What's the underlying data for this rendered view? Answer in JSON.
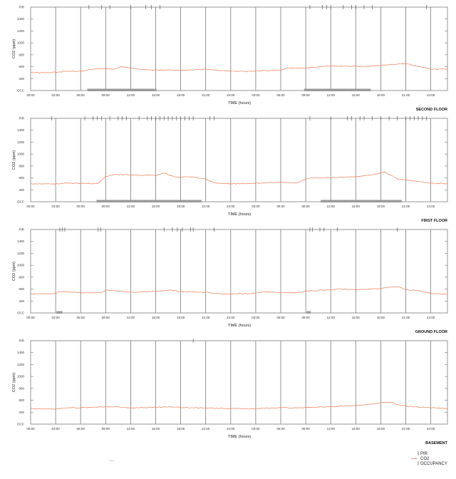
{
  "chart_data": [
    {
      "type": "line",
      "title": "SECOND FLOOR",
      "xlabel": "TIME (hours)",
      "ylabel": "CO2 (ppm)",
      "ylim": [
        200,
        1600
      ],
      "y_ticks": [
        "OCC",
        "400",
        "600",
        "800",
        "1000",
        "1200",
        "1400",
        "PIR"
      ],
      "x_ticks": [
        "00:00",
        "03:00",
        "06:00",
        "09:00",
        "12:00",
        "15:00",
        "18:00",
        "21:00",
        "24:00",
        "03:00",
        "06:00",
        "09:00",
        "12:00",
        "15:00",
        "18:00",
        "21:00",
        "24:00"
      ],
      "series": [
        {
          "name": "CO2",
          "x_hours": [
            0,
            2,
            4,
            6,
            8,
            10,
            11,
            13,
            15,
            18,
            21,
            24,
            26,
            28,
            30,
            31,
            33,
            36,
            39,
            40,
            42,
            45,
            48,
            50
          ],
          "values": [
            505,
            500,
            520,
            525,
            570,
            560,
            600,
            555,
            545,
            540,
            560,
            525,
            520,
            535,
            540,
            580,
            575,
            615,
            605,
            600,
            625,
            650,
            560,
            555
          ]
        },
        {
          "name": "PIR",
          "x_hours": [
            7,
            8.5,
            9.5,
            12,
            13.8,
            14.5,
            15.5,
            33.5,
            35,
            35.5,
            36,
            37.5,
            38.5,
            39,
            40,
            41,
            47.5
          ]
        },
        {
          "name": "OCCUPANCY",
          "intervals": [
            [
              6.8,
              14.8
            ],
            [
              14.8,
              15.1
            ],
            [
              32.8,
              39.8
            ],
            [
              39.8,
              40.8
            ]
          ]
        }
      ],
      "grid": true,
      "legend_position": "bottom-right"
    },
    {
      "type": "line",
      "title": "FIRST FLOOR",
      "xlabel": "TIME (hours)",
      "ylabel": "CO2 (ppm)",
      "ylim": [
        200,
        1600
      ],
      "y_ticks": [
        "OCC",
        "400",
        "600",
        "800",
        "1000",
        "1200",
        "1400",
        "PIR"
      ],
      "x_ticks": [
        "00:00",
        "03:00",
        "06:00",
        "09:00",
        "12:00",
        "15:00",
        "18:00",
        "21:00",
        "24:00",
        "03:00",
        "06:00",
        "09:00",
        "12:00",
        "15:00",
        "18:00",
        "21:00",
        "24:00"
      ],
      "series": [
        {
          "name": "CO2",
          "x_hours": [
            0,
            3,
            4,
            6,
            8,
            8.5,
            9,
            10,
            12,
            15,
            16,
            16.5,
            17.5,
            19,
            21,
            22,
            24,
            27,
            30,
            32,
            33.5,
            35,
            39,
            41,
            42.5,
            44,
            46,
            48,
            50
          ],
          "values": [
            500,
            500,
            510,
            510,
            505,
            560,
            620,
            660,
            650,
            640,
            690,
            650,
            610,
            620,
            580,
            515,
            500,
            510,
            525,
            520,
            600,
            600,
            620,
            650,
            700,
            580,
            550,
            510,
            505
          ]
        },
        {
          "name": "PIR",
          "x_hours": [
            2.5,
            6.5,
            7.5,
            8,
            8.5,
            9.5,
            10.5,
            11,
            11.5,
            13,
            14,
            14.5,
            15,
            15.5,
            16,
            16.5,
            17,
            17.5,
            18,
            18.5,
            19,
            19.5,
            21.5,
            22,
            33.5,
            36,
            38,
            38.5,
            39.5,
            40,
            41,
            42,
            43,
            44,
            45,
            45.5,
            46,
            46.5,
            47,
            47.5
          ]
        },
        {
          "name": "OCCUPANCY",
          "intervals": [
            [
              7.9,
              16.2
            ],
            [
              16.2,
              20.5
            ],
            [
              34.8,
              44.5
            ]
          ]
        }
      ],
      "grid": true
    },
    {
      "type": "line",
      "title": "GROUND FLOOR",
      "xlabel": "TIME (hours)",
      "ylabel": "CO2 (ppm)",
      "ylim": [
        200,
        1600
      ],
      "y_ticks": [
        "OCC",
        "400",
        "600",
        "800",
        "1000",
        "1200",
        "1400",
        "PIR"
      ],
      "x_ticks": [
        "00:00",
        "03:00",
        "06:00",
        "09:00",
        "12:00",
        "15:00",
        "18:00",
        "21:00",
        "24:00",
        "03:00",
        "06:00",
        "09:00",
        "12:00",
        "15:00",
        "18:00",
        "21:00",
        "24:00"
      ],
      "series": [
        {
          "name": "CO2",
          "x_hours": [
            0,
            3,
            3.5,
            6,
            8.5,
            9,
            11,
            12,
            15,
            17,
            18,
            21,
            23,
            24,
            27,
            28,
            30,
            32,
            33,
            36,
            37,
            39,
            42,
            43,
            44,
            45,
            46.5,
            48,
            50
          ],
          "values": [
            520,
            525,
            560,
            540,
            540,
            580,
            565,
            545,
            565,
            580,
            560,
            545,
            520,
            520,
            525,
            560,
            540,
            540,
            565,
            590,
            600,
            590,
            610,
            635,
            640,
            590,
            575,
            530,
            520
          ]
        },
        {
          "name": "PIR",
          "x_hours": [
            3.5,
            3.8,
            4.1,
            8.1,
            8.4,
            16,
            17,
            17.6,
            18.2,
            19.2,
            19.5,
            22,
            33.5,
            33.8,
            34.7,
            35.2,
            36.8,
            44
          ]
        },
        {
          "name": "OCCUPANCY",
          "intervals": [
            [
              3.1,
              3.8
            ],
            [
              33.1,
              33.6
            ]
          ]
        }
      ],
      "grid": true
    },
    {
      "type": "line",
      "title": "BASEMENT",
      "xlabel": "TIME (hours)",
      "ylabel": "CO2 (ppm)",
      "ylim": [
        200,
        1600
      ],
      "y_ticks": [
        "OCC",
        "400",
        "600",
        "800",
        "1000",
        "1200",
        "1400",
        "PIR"
      ],
      "x_ticks": [
        "00:00",
        "03:00",
        "06:00",
        "09:00",
        "12:00",
        "15:00",
        "18:00",
        "21:00",
        "24:00",
        "03:00",
        "06:00",
        "09:00",
        "12:00",
        "15:00",
        "18:00",
        "21:00",
        "24:00"
      ],
      "series": [
        {
          "name": "CO2",
          "x_hours": [
            0,
            3,
            4,
            6,
            9,
            10,
            12,
            15,
            17,
            18,
            21,
            24,
            27,
            29,
            30,
            32,
            35,
            36,
            40,
            42,
            43.5,
            44,
            46,
            48,
            50
          ],
          "values": [
            460,
            455,
            470,
            475,
            490,
            490,
            475,
            480,
            490,
            480,
            470,
            460,
            460,
            470,
            480,
            470,
            490,
            490,
            520,
            560,
            565,
            520,
            490,
            475,
            460
          ]
        },
        {
          "name": "PIR",
          "x_hours": [
            19.5
          ]
        },
        {
          "name": "OCCUPANCY",
          "intervals": []
        }
      ],
      "grid": true
    }
  ],
  "legend": {
    "items": [
      {
        "label": "PIR",
        "symbol": "tick",
        "color": "#555555"
      },
      {
        "label": "CO2",
        "symbol": "line",
        "color": "#f07a55"
      },
      {
        "label": "OCCUPANCY",
        "symbol": "tick",
        "color": "#555555"
      }
    ]
  },
  "footer_mark": "----",
  "colors": {
    "co2": "#f07a55",
    "grid": "#7a7a7a",
    "occupancy": "#9a9a9a",
    "pir": "#444444"
  }
}
